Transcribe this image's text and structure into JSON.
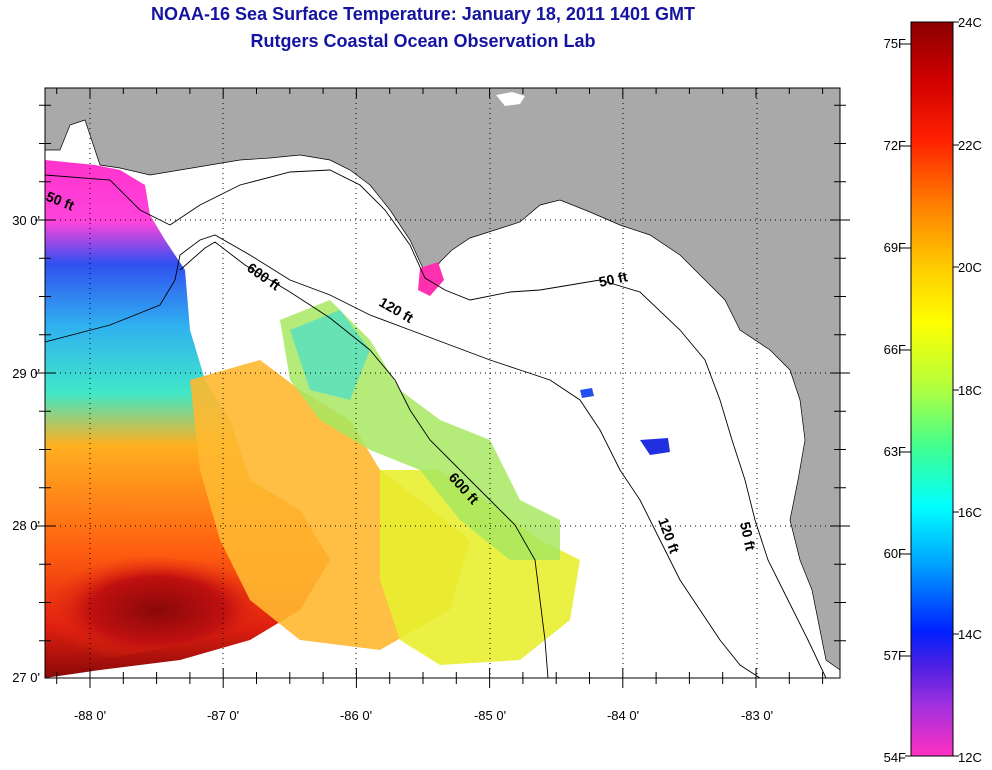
{
  "header": {
    "title": "NOAA-16 Sea Surface Temperature:  January 18, 2011 1401 GMT",
    "subtitle": "Rutgers Coastal Ocean Observation Lab"
  },
  "map": {
    "lon_labels": [
      "-88 0'",
      "-87 0'",
      "-86 0'",
      "-85 0'",
      "-84 0'",
      "-83 0'"
    ],
    "lat_labels": [
      "30 0'",
      "29 0'",
      "28 0'",
      "27 0'"
    ],
    "depth_labels": [
      {
        "id": "d50w",
        "text": "50 ft"
      },
      {
        "id": "d600n",
        "text": "600 ft"
      },
      {
        "id": "d120n",
        "text": "120 ft"
      },
      {
        "id": "d50n",
        "text": "50 ft"
      },
      {
        "id": "d600s",
        "text": "600 ft"
      },
      {
        "id": "d120s",
        "text": "120 ft"
      },
      {
        "id": "d50s",
        "text": "50 ft"
      }
    ],
    "colors": {
      "land": "#a9a9a9",
      "water": "#ffffff",
      "contour": "#000000"
    }
  },
  "colorbar": {
    "fahrenheit": [
      "75F",
      "72F",
      "69F",
      "66F",
      "63F",
      "60F",
      "57F",
      "54F"
    ],
    "celsius": [
      "24C",
      "22C",
      "20C",
      "18C",
      "16C",
      "14C",
      "12C"
    ],
    "range_c": [
      12,
      24
    ]
  }
}
